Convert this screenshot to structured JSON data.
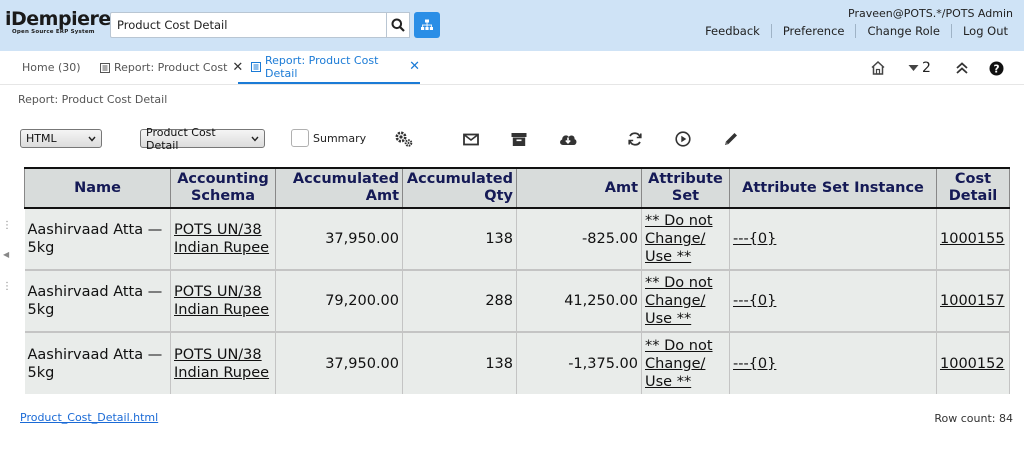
{
  "header": {
    "logo_main": "iDempiere",
    "logo_sub": "Open Source ERP System",
    "search_value": "Product Cost Detail",
    "user": "Praveen@POTS.*/POTS Admin",
    "links": [
      "Feedback",
      "Preference",
      "Change Role",
      "Log Out"
    ]
  },
  "tabs": [
    {
      "label": "Home (30)",
      "active": false
    },
    {
      "label": "Report: Product Cost",
      "active": false
    },
    {
      "label": "Report: Product Cost Detail",
      "active": true
    }
  ],
  "tab_tools": {
    "windows_count": "2"
  },
  "breadcrumb": "Report: Product Cost Detail",
  "controls": {
    "format": "HTML",
    "report_view": "Product Cost Detail",
    "summary_label": "Summary"
  },
  "table": {
    "columns": [
      "Name",
      "Accounting Schema",
      "Accumulated Amt",
      "Accumulated Qty",
      "Amt",
      "Attribute Set",
      "Attribute Set Instance",
      "Cost Detail"
    ],
    "rows": [
      [
        "Aashirvaad Atta — 5kg",
        "POTS UN/38 Indian Rupee",
        "37,950.00",
        "138",
        "-825.00",
        "** Do not Change/ Use **",
        "---{0}",
        "1000155"
      ],
      [
        "Aashirvaad Atta — 5kg",
        "POTS UN/38 Indian Rupee",
        "79,200.00",
        "288",
        "41,250.00",
        "** Do not Change/ Use **",
        "---{0}",
        "1000157"
      ],
      [
        "Aashirvaad Atta — 5kg",
        "POTS UN/38 Indian Rupee",
        "37,950.00",
        "138",
        "-1,375.00",
        "** Do not Change/ Use **",
        "---{0}",
        "1000152"
      ]
    ]
  },
  "footer": {
    "file_link": "Product_Cost_Detail.html",
    "row_count": "Row count: 84"
  },
  "icons": {
    "search": "search-icon",
    "menu": "sitemap-icon",
    "home": "home-icon",
    "windows": "caret-down-icon",
    "collapse": "double-chevron-up-icon",
    "help": "help-icon"
  },
  "colors": {
    "header_bg": "#cfe3f6",
    "accent": "#1b7bd6",
    "table_header_text": "#151a56"
  }
}
